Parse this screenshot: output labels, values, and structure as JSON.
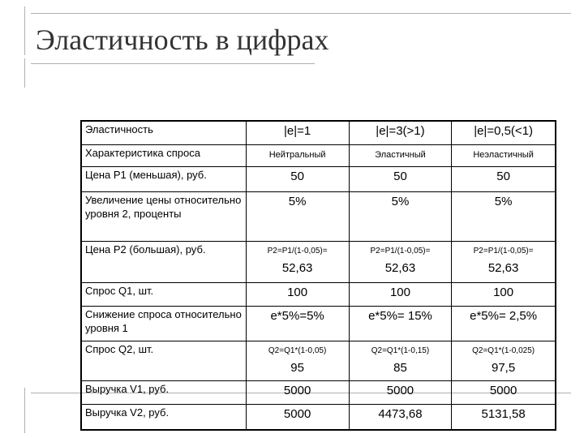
{
  "title": "Эластичность в цифрах",
  "table": {
    "header": {
      "label": "Эластичность",
      "cols": [
        "|e|=1",
        "|e|=3(>1)",
        "|e|=0,5(<1)"
      ]
    },
    "demand": {
      "label": "Характеристика спроса",
      "cols": [
        "Нейтральный",
        "Эластичный",
        "Неэластичный"
      ]
    },
    "p1": {
      "label": "Цена P1 (меньшая), руб.",
      "cols": [
        "50",
        "50",
        "50"
      ]
    },
    "price_increase": {
      "label": "Увеличение цены относительно уровня 2, проценты",
      "cols": [
        "5%",
        "5%",
        "5%"
      ]
    },
    "p2": {
      "label": "Цена P2 (большая), руб.",
      "formulas": [
        "P2=P1/(1-0,05)=",
        "P2=P1/(1-0,05)=",
        "P2=P1/(1-0,05)="
      ],
      "cols": [
        "52,63",
        "52,63",
        "52,63"
      ]
    },
    "q1": {
      "label": "Спрос Q1, шт.",
      "cols": [
        "100",
        "100",
        "100"
      ]
    },
    "demand_drop": {
      "label": "Снижение спроса относительно уровня 1",
      "cols": [
        "e*5%=5%",
        "e*5%= 15%",
        "e*5%= 2,5%"
      ]
    },
    "q2": {
      "label": "Спрос Q2, шт.",
      "formulas": [
        "Q2=Q1*(1-0,05)",
        "Q2=Q1*(1-0,15)",
        "Q2=Q1*(1-0,025)"
      ],
      "cols": [
        "95",
        "85",
        "97,5"
      ]
    },
    "v1": {
      "label": "Выручка V1, руб.",
      "cols": [
        "5000",
        "5000",
        "5000"
      ]
    },
    "v2": {
      "label": "Выручка V2, руб.",
      "cols": [
        "5000",
        "4473,68",
        "5131,58"
      ]
    }
  }
}
